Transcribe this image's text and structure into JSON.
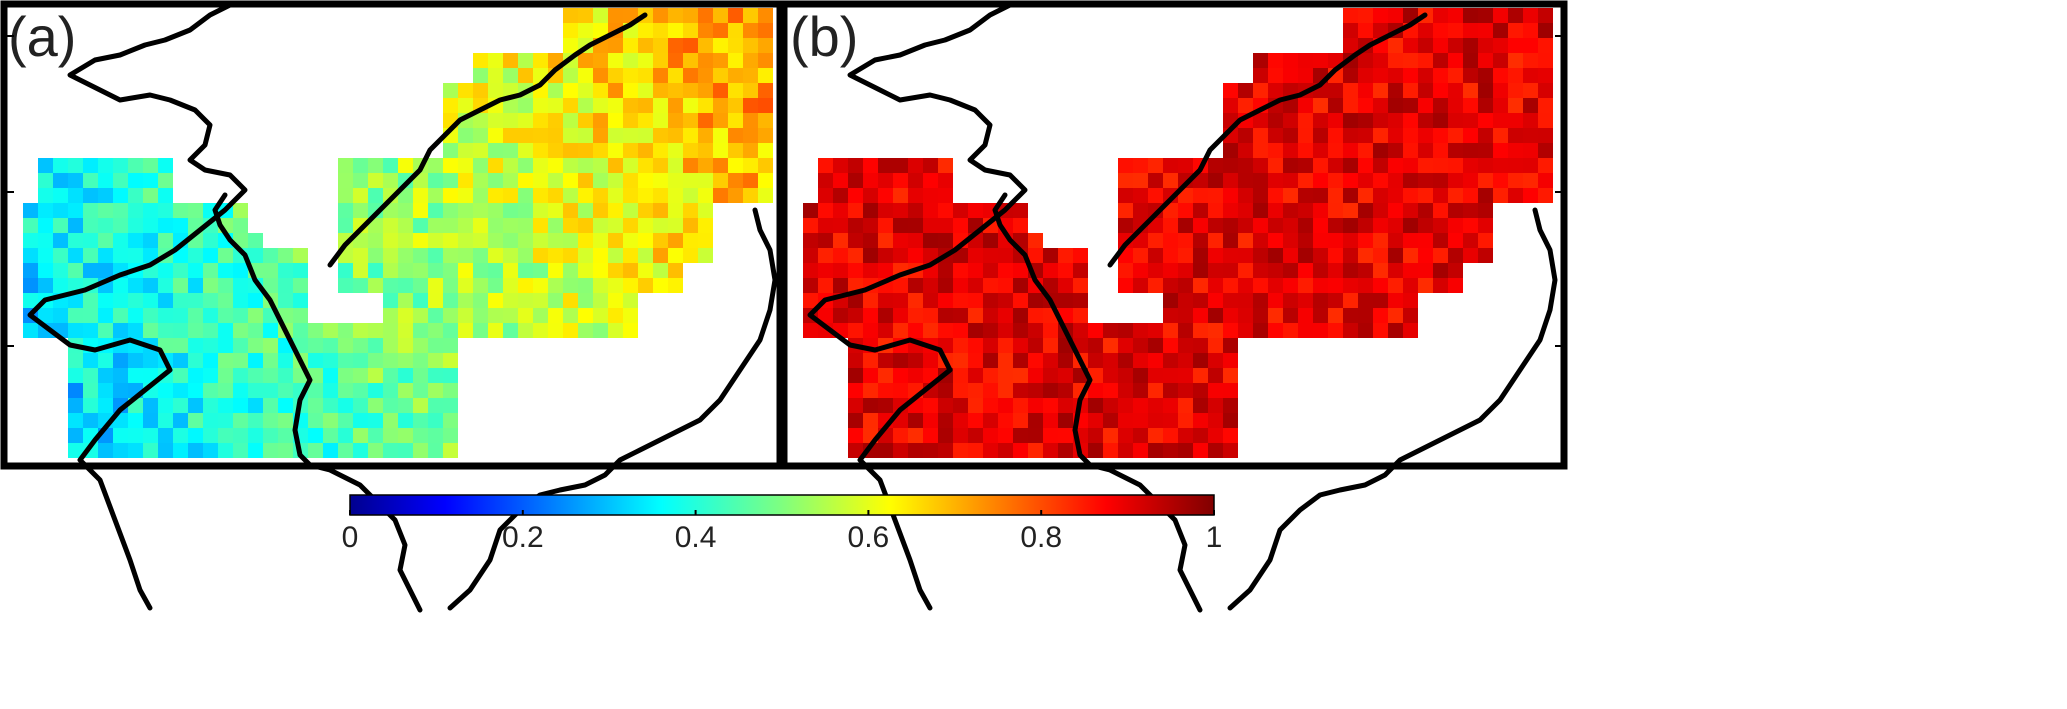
{
  "figure": {
    "panels": [
      {
        "id": "a",
        "label": "(a)",
        "pattern": "mid"
      },
      {
        "id": "b",
        "label": "(b)",
        "pattern": "high"
      }
    ],
    "colorbar": {
      "colormap": "jet",
      "min": 0,
      "max": 1,
      "tick_labels": [
        "0",
        "0.2",
        "0.4",
        "0.6",
        "0.8",
        "1"
      ],
      "tick_values": [
        0,
        0.2,
        0.4,
        0.6,
        0.8,
        1
      ]
    },
    "colors": {
      "frame": "#000000",
      "coastline": "#000000",
      "background": "#ffffff"
    }
  }
}
